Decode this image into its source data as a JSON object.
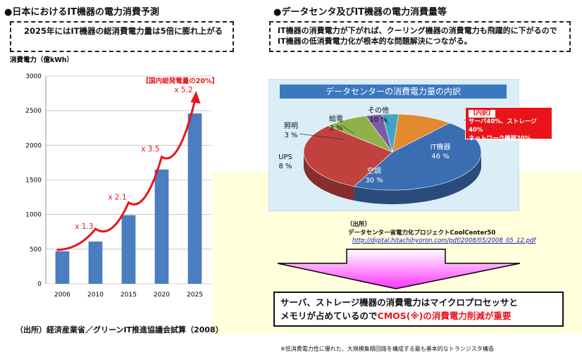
{
  "left": {
    "heading": "●日本におけるIT機器の電力消費予測",
    "summary": "2025年にはIT機器の総消費電力量は5倍に膨れ上がる",
    "source": "（出所）経済産業省／グリーンIT推進協議会試算（2008）"
  },
  "right": {
    "heading": "●データセンタ及びIT機器の電力消費量等",
    "summary": "IT機器の消費電力が下がれば、クーリング機器の消費電力も飛躍的に下がるのでIT機器の低消費電力化が根本的な問題解決につながる。"
  },
  "chart_data": [
    {
      "type": "bar",
      "title": "",
      "ylabel": "消費電力（億kWh）",
      "xlabel": "",
      "categories": [
        "2006",
        "2010",
        "2015",
        "2020",
        "2025"
      ],
      "values": [
        470,
        610,
        990,
        1650,
        2460
      ],
      "ylim": [
        0,
        3000
      ],
      "yticks": [
        "0",
        "500",
        "1000",
        "1500",
        "2000",
        "2500",
        "3000"
      ],
      "grid": true,
      "bar_color": "#4a7ebf",
      "multipliers": [
        "x 1.3",
        "x 2.1",
        "x 3.5",
        "x 5.2"
      ],
      "annotation": "【国内総発電量の20%】",
      "trend_color": "#e8141a"
    },
    {
      "type": "pie",
      "title": "データセンターの消費電力量の内訳",
      "slices": [
        {
          "label": "IT機器",
          "value": 46,
          "text": "46 %",
          "color": "#3a6db1"
        },
        {
          "label": "空調",
          "value": 30,
          "text": "30 %",
          "color": "#c0413e"
        },
        {
          "label": "UPS",
          "value": 8,
          "text": "8 %",
          "color": "#8fb14a"
        },
        {
          "label": "照明",
          "value": 3,
          "text": "3 %",
          "color": "#7c5aa6"
        },
        {
          "label": "給電",
          "value": 3,
          "text": "3 %",
          "color": "#3ea6c4"
        },
        {
          "label": "その他",
          "value": 10,
          "text": "10 %",
          "color": "#e3892e"
        }
      ],
      "callout_title": "【内訳】",
      "callout_line1": "サーバ40%、ストレージ40%",
      "callout_line2": "ネットワーク機器20%"
    }
  ],
  "pie_source": {
    "label": "（出所）",
    "text": "データセンター省電力化プロジェクトCoolCenter50",
    "url": "http://digital.hitachihyoron.com/pdf/2008/05/2008_05_12.pdf"
  },
  "conclusion": {
    "line1": "サーバ、ストレージ機器の消費電力はマイクロプロセッサと",
    "line2a": "メモリが占めているので",
    "line2b": "CMOS(※)の消費電力削減が重要"
  },
  "footnote": "※低消費電力性に優れた、大規模集積回路を構成する最も基本的なトランジスタ構造"
}
